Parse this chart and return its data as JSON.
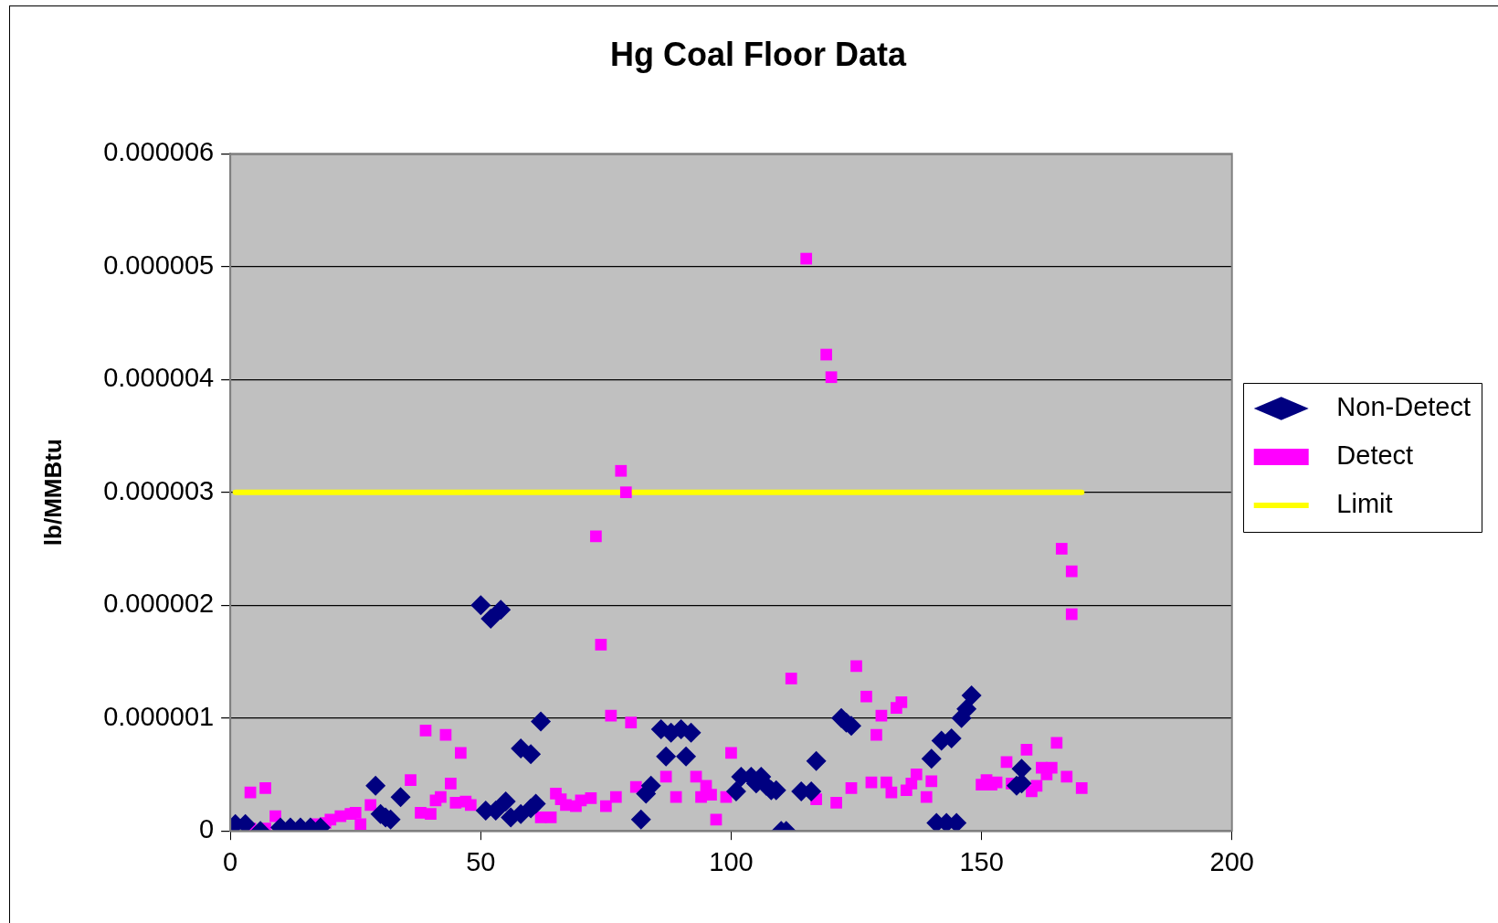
{
  "chart_data": {
    "type": "scatter",
    "title": "Hg Coal Floor Data",
    "ylabel": "lb/MMBtu",
    "xlim": [
      0,
      200
    ],
    "xticks": [
      0,
      50,
      100,
      150,
      200
    ],
    "ylim": [
      0,
      6e-06
    ],
    "yticks": [
      0,
      {
        "value": 1e-06,
        "label": "0.000001"
      },
      {
        "value": 2e-06,
        "label": "0.000002"
      },
      {
        "value": 3e-06,
        "label": "0.000003"
      },
      {
        "value": 4e-06,
        "label": "0.000004"
      },
      {
        "value": 5e-06,
        "label": "0.000005"
      },
      {
        "value": 6e-06,
        "label": "0.000006"
      }
    ],
    "grid": "y",
    "legend": "right",
    "series": [
      {
        "name": "Non-Detect",
        "color": "#000080",
        "marker": "diamond",
        "x": [
          1,
          3,
          6,
          10,
          12,
          14,
          16,
          18,
          29,
          30,
          31,
          32,
          34,
          50,
          51,
          52,
          53,
          54,
          55,
          56,
          58,
          58,
          60,
          60,
          61,
          62,
          82,
          83,
          84,
          86,
          87,
          88,
          90,
          91,
          92,
          101,
          102,
          104,
          105,
          106,
          107,
          108,
          109,
          110,
          111,
          114,
          116,
          117,
          122,
          123,
          124,
          140,
          141,
          142,
          143,
          144,
          145,
          146,
          147,
          148,
          157,
          158,
          158
        ],
        "values": [
          6e-08,
          6e-08,
          0,
          3e-08,
          3e-08,
          3e-08,
          3e-08,
          3e-08,
          4e-07,
          1.5e-07,
          1.2e-07,
          1e-07,
          3e-07,
          2e-06,
          1.8e-07,
          1.88e-06,
          1.8e-07,
          1.96e-06,
          2.6e-07,
          1.2e-07,
          1.5e-07,
          7.3e-07,
          6.8e-07,
          2e-07,
          2.4e-07,
          9.7e-07,
          1e-07,
          3.3e-07,
          4e-07,
          9e-07,
          6.6e-07,
          8.7e-07,
          9e-07,
          6.6e-07,
          8.7e-07,
          3.5e-07,
          4.8e-07,
          4.8e-07,
          4.2e-07,
          4.8e-07,
          4e-07,
          3.6e-07,
          3.6e-07,
          0,
          0,
          3.5e-07,
          3.5e-07,
          6.2e-07,
          1e-06,
          9.6e-07,
          9.3e-07,
          6.4e-07,
          7e-08,
          8e-07,
          7e-08,
          8.2e-07,
          7e-08,
          1e-06,
          1.08e-06,
          1.2e-06,
          4e-07,
          5.5e-07,
          4.2e-07
        ]
      },
      {
        "name": "Detect",
        "color": "#ff00ff",
        "marker": "square",
        "x": [
          4,
          7,
          4,
          7,
          9,
          17,
          19,
          20,
          22,
          24,
          25,
          26,
          28,
          36,
          38,
          39,
          40,
          41,
          42,
          43,
          44,
          45,
          46,
          47,
          48,
          62,
          64,
          65,
          66,
          67,
          69,
          70,
          72,
          73,
          74,
          75,
          76,
          77,
          78,
          79,
          80,
          81,
          87,
          89,
          93,
          94,
          95,
          96,
          97,
          99,
          100,
          112,
          115,
          117,
          119,
          120,
          121,
          124,
          125,
          127,
          128,
          129,
          130,
          131,
          132,
          133,
          134,
          135,
          136,
          137,
          139,
          140,
          150,
          151,
          152,
          153,
          155,
          156,
          159,
          160,
          161,
          162,
          163,
          164,
          165,
          166,
          167,
          168,
          168,
          170
        ],
        "values": [
          3.4e-07,
          3.8e-07,
          2e-08,
          2e-08,
          1.3e-07,
          6e-08,
          7e-08,
          1e-07,
          1.3e-07,
          1.5e-07,
          1.6e-07,
          6e-08,
          2.3e-07,
          4.5e-07,
          1.6e-07,
          8.9e-07,
          1.5e-07,
          2.7e-07,
          3e-07,
          8.5e-07,
          4.2e-07,
          2.5e-07,
          6.9e-07,
          2.6e-07,
          2.3e-07,
          1.2e-07,
          1.2e-07,
          3.3e-07,
          2.8e-07,
          2.3e-07,
          2.2e-07,
          2.7e-07,
          2.9e-07,
          2.61e-06,
          1.65e-06,
          2.2e-07,
          1.02e-06,
          3e-07,
          3.19e-06,
          3e-06,
          9.6e-07,
          3.9e-07,
          4.8e-07,
          3e-07,
          4.8e-07,
          3e-07,
          4e-07,
          3.2e-07,
          1e-07,
          3e-07,
          6.9e-07,
          1.35e-06,
          5.07e-06,
          2.8e-07,
          4.22e-06,
          4.02e-06,
          2.5e-07,
          3.8e-07,
          1.46e-06,
          1.19e-06,
          4.3e-07,
          8.5e-07,
          1.02e-06,
          4.3e-07,
          3.4e-07,
          1.09e-06,
          1.14e-06,
          3.6e-07,
          4.2e-07,
          5e-07,
          3e-07,
          4.4e-07,
          4.1e-07,
          4.5e-07,
          4.1e-07,
          4.3e-07,
          6.1e-07,
          4.2e-07,
          7.2e-07,
          3.5e-07,
          4e-07,
          5.6e-07,
          5e-07,
          5.6e-07,
          7.8e-07,
          2.5e-06,
          4.8e-07,
          2.3e-06,
          1.92e-06,
          3.8e-07
        ]
      },
      {
        "name": "Limit",
        "type": "line",
        "color": "#ffff00",
        "marker": "none",
        "x": [
          1,
          170
        ],
        "values": [
          3e-06,
          3e-06
        ]
      }
    ]
  }
}
